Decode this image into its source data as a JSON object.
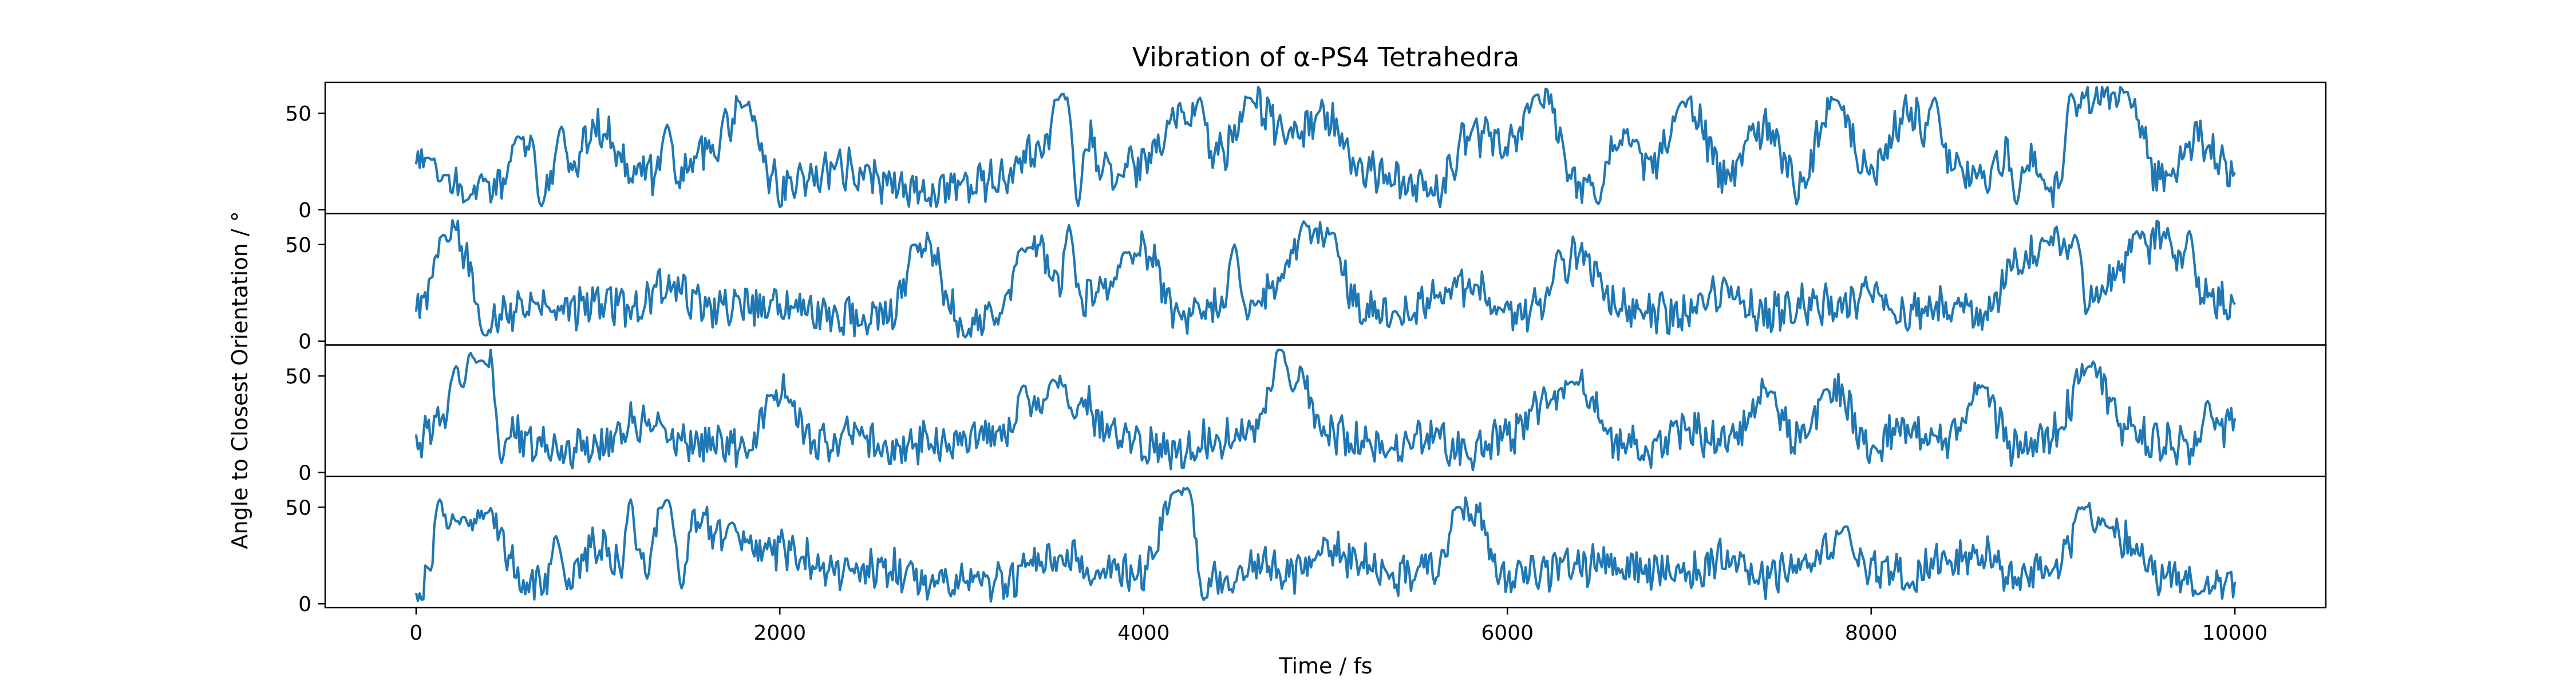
{
  "chart_data": {
    "type": "line",
    "title": "Vibration of α-PS4 Tetrahedra",
    "xlabel": "Time / fs",
    "ylabel": "Angle to Closest Orientation / °",
    "xlim": [
      -500,
      10500
    ],
    "ylim": [
      -2,
      66
    ],
    "xticks": [
      0,
      2000,
      4000,
      6000,
      8000,
      10000
    ],
    "yticks": [
      0,
      50
    ],
    "grid": false,
    "legend": "none",
    "line_color": "#1f77b4",
    "panels": [
      {
        "x": [
          0,
          200,
          400,
          600,
          800,
          1000,
          1200,
          1400,
          1600,
          1800,
          2000,
          2200,
          2400,
          2600,
          2800,
          3000,
          3200,
          3400,
          3600,
          3800,
          4000,
          4200,
          4400,
          4600,
          4800,
          5000,
          5200,
          5400,
          5600,
          5800,
          6000,
          6200,
          6400,
          6600,
          6800,
          7000,
          7200,
          7400,
          7600,
          7800,
          8000,
          8200,
          8400,
          8600,
          8800,
          9000,
          9200,
          9400,
          9600,
          9800,
          10000
        ],
        "y": [
          27,
          12,
          10,
          32,
          15,
          42,
          22,
          15,
          32,
          52,
          12,
          18,
          22,
          14,
          8,
          12,
          15,
          28,
          60,
          18,
          22,
          50,
          28,
          55,
          38,
          48,
          22,
          14,
          10,
          40,
          32,
          58,
          12,
          35,
          25,
          55,
          18,
          42,
          14,
          55,
          18,
          52,
          28,
          15,
          35,
          10,
          60,
          55,
          15,
          38,
          20
        ],
        "peaks": [
          {
            "x": 70,
            "y": 27
          },
          {
            "x": 160,
            "y": 18
          },
          {
            "x": 280,
            "y": 5
          },
          {
            "x": 560,
            "y": 38
          },
          {
            "x": 690,
            "y": 2
          },
          {
            "x": 800,
            "y": 43
          },
          {
            "x": 1380,
            "y": 44
          },
          {
            "x": 1810,
            "y": 54
          },
          {
            "x": 3550,
            "y": 60
          },
          {
            "x": 3640,
            "y": 2
          },
          {
            "x": 4310,
            "y": 58
          },
          {
            "x": 4580,
            "y": 58
          },
          {
            "x": 6150,
            "y": 59
          },
          {
            "x": 6500,
            "y": 3
          },
          {
            "x": 6960,
            "y": 56
          },
          {
            "x": 7800,
            "y": 57
          },
          {
            "x": 8350,
            "y": 58
          },
          {
            "x": 8800,
            "y": 3
          },
          {
            "x": 9100,
            "y": 60
          },
          {
            "x": 9400,
            "y": 61
          }
        ]
      },
      {
        "x": [
          0,
          200,
          400,
          600,
          800,
          1000,
          1200,
          1400,
          1600,
          1800,
          2000,
          2200,
          2400,
          2600,
          2800,
          3000,
          3200,
          3400,
          3600,
          3800,
          4000,
          4200,
          4400,
          4600,
          4800,
          5000,
          5200,
          5400,
          5600,
          5800,
          6000,
          6200,
          6400,
          6600,
          6800,
          7000,
          7200,
          7400,
          7600,
          7800,
          8000,
          8200,
          8400,
          8600,
          8800,
          9000,
          9200,
          9400,
          9600,
          9800,
          10000
        ],
        "y": [
          15,
          55,
          14,
          18,
          15,
          22,
          18,
          30,
          16,
          20,
          18,
          15,
          12,
          14,
          48,
          12,
          15,
          50,
          18,
          30,
          48,
          14,
          18,
          18,
          40,
          54,
          18,
          15,
          20,
          30,
          14,
          18,
          46,
          18,
          14,
          15,
          25,
          14,
          18,
          20,
          22,
          15,
          18,
          14,
          40,
          52,
          22,
          40,
          55,
          22,
          20
        ],
        "peaks": [
          {
            "x": 150,
            "y": 55
          },
          {
            "x": 380,
            "y": 3
          },
          {
            "x": 2740,
            "y": 50
          },
          {
            "x": 3020,
            "y": 2
          },
          {
            "x": 3330,
            "y": 48
          },
          {
            "x": 3590,
            "y": 60
          },
          {
            "x": 3900,
            "y": 46
          },
          {
            "x": 4500,
            "y": 50
          },
          {
            "x": 4880,
            "y": 62
          },
          {
            "x": 5040,
            "y": 56
          },
          {
            "x": 6280,
            "y": 47
          },
          {
            "x": 8960,
            "y": 52
          },
          {
            "x": 9120,
            "y": 55
          },
          {
            "x": 9460,
            "y": 57
          },
          {
            "x": 9750,
            "y": 57
          }
        ]
      },
      {
        "x": [
          0,
          200,
          400,
          600,
          800,
          1000,
          1200,
          1400,
          1600,
          1800,
          2000,
          2200,
          2400,
          2600,
          2800,
          3000,
          3200,
          3400,
          3600,
          3800,
          4000,
          4200,
          4400,
          4600,
          4800,
          5000,
          5200,
          5400,
          5600,
          5800,
          6000,
          6200,
          6400,
          6600,
          6800,
          7000,
          7200,
          7400,
          7600,
          7800,
          8000,
          8200,
          8400,
          8600,
          8800,
          9000,
          9200,
          9400,
          9600,
          9800,
          10000
        ],
        "y": [
          18,
          30,
          58,
          14,
          12,
          15,
          25,
          18,
          15,
          12,
          40,
          14,
          20,
          12,
          15,
          18,
          22,
          32,
          48,
          20,
          14,
          12,
          18,
          22,
          65,
          20,
          15,
          12,
          18,
          10,
          20,
          35,
          45,
          15,
          12,
          22,
          15,
          40,
          18,
          42,
          14,
          25,
          15,
          40,
          12,
          20,
          55,
          22,
          14,
          12,
          28
        ],
        "peaks": [
          {
            "x": 220,
            "y": 55
          },
          {
            "x": 300,
            "y": 62
          },
          {
            "x": 360,
            "y": 58
          },
          {
            "x": 470,
            "y": 5
          },
          {
            "x": 1950,
            "y": 40
          },
          {
            "x": 3340,
            "y": 45
          },
          {
            "x": 3500,
            "y": 48
          },
          {
            "x": 3620,
            "y": 28
          },
          {
            "x": 4750,
            "y": 65
          },
          {
            "x": 4820,
            "y": 42
          },
          {
            "x": 6350,
            "y": 47
          },
          {
            "x": 7450,
            "y": 42
          },
          {
            "x": 7750,
            "y": 43
          },
          {
            "x": 8610,
            "y": 45
          },
          {
            "x": 9200,
            "y": 55
          },
          {
            "x": 9850,
            "y": 37
          }
        ]
      },
      {
        "x": [
          0,
          200,
          400,
          600,
          800,
          1000,
          1200,
          1400,
          1600,
          1800,
          2000,
          2200,
          2400,
          2600,
          2800,
          3000,
          3200,
          3400,
          3600,
          3800,
          4000,
          4200,
          4400,
          4600,
          4800,
          5000,
          5200,
          5400,
          5600,
          5800,
          6000,
          6200,
          6400,
          6600,
          6800,
          7000,
          7200,
          7400,
          7600,
          7800,
          8000,
          8200,
          8400,
          8600,
          8800,
          9000,
          9200,
          9400,
          9600,
          9800,
          10000
        ],
        "y": [
          5,
          40,
          45,
          12,
          10,
          30,
          12,
          52,
          40,
          30,
          28,
          22,
          15,
          18,
          12,
          14,
          10,
          18,
          22,
          15,
          18,
          58,
          12,
          22,
          15,
          30,
          20,
          14,
          22,
          50,
          12,
          15,
          20,
          22,
          18,
          15,
          25,
          14,
          20,
          30,
          18,
          15,
          22,
          25,
          12,
          18,
          48,
          32,
          15,
          10,
          8
        ],
        "peaks": [
          {
            "x": 130,
            "y": 54
          },
          {
            "x": 260,
            "y": 45
          },
          {
            "x": 390,
            "y": 47
          },
          {
            "x": 770,
            "y": 35
          },
          {
            "x": 1180,
            "y": 54
          },
          {
            "x": 1380,
            "y": 54
          },
          {
            "x": 1460,
            "y": 8
          },
          {
            "x": 1740,
            "y": 42
          },
          {
            "x": 4180,
            "y": 58
          },
          {
            "x": 4240,
            "y": 60
          },
          {
            "x": 4330,
            "y": 2
          },
          {
            "x": 5720,
            "y": 50
          },
          {
            "x": 7860,
            "y": 40
          },
          {
            "x": 9160,
            "y": 50
          },
          {
            "x": 9300,
            "y": 40
          },
          {
            "x": 9800,
            "y": 5
          }
        ]
      }
    ]
  }
}
